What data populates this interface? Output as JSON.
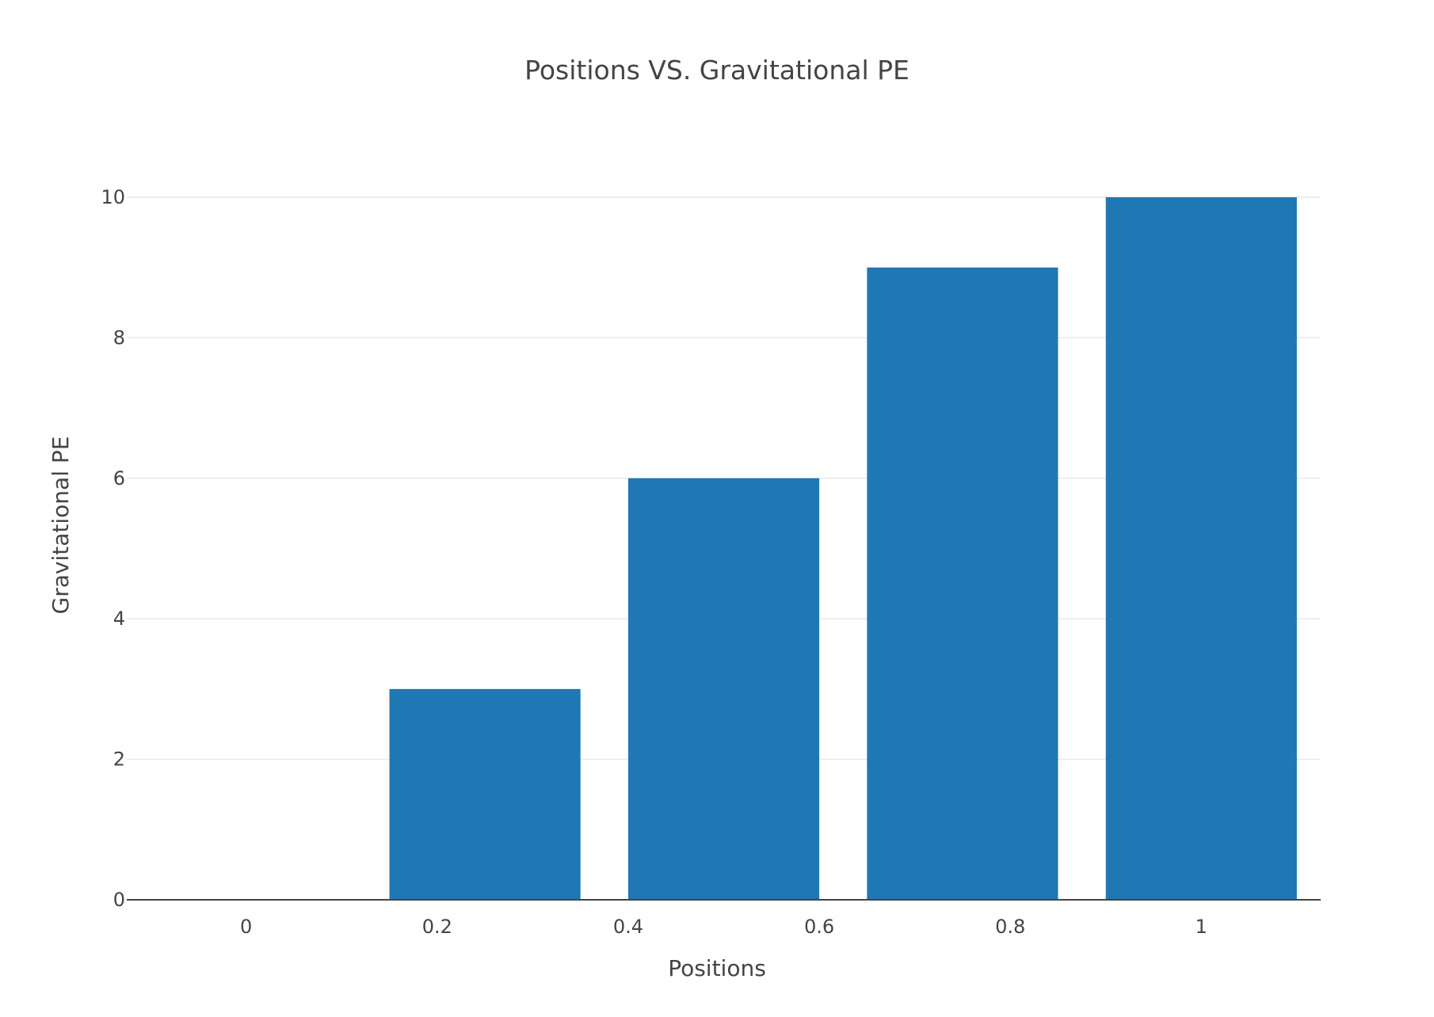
{
  "chart_data": {
    "type": "bar",
    "title": "Positions VS. Gravitational PE",
    "xlabel": "Positions",
    "ylabel": "Gravitational PE",
    "x": [
      0,
      0.25,
      0.5,
      0.75,
      1
    ],
    "values": [
      0,
      3,
      6,
      9,
      10
    ],
    "xlim": [
      -0.125,
      1.125
    ],
    "ylim": [
      0,
      10.5
    ],
    "xticks": [
      0,
      0.2,
      0.4,
      0.6,
      0.8,
      1
    ],
    "xtick_labels": [
      "0",
      "0.2",
      "0.4",
      "0.6",
      "0.8",
      "1"
    ],
    "yticks": [
      0,
      2,
      4,
      6,
      8,
      10
    ],
    "ytick_labels": [
      "0",
      "2",
      "4",
      "6",
      "8",
      "10"
    ],
    "grid": true,
    "legend": "none",
    "bar_color": "#1f77b4"
  }
}
